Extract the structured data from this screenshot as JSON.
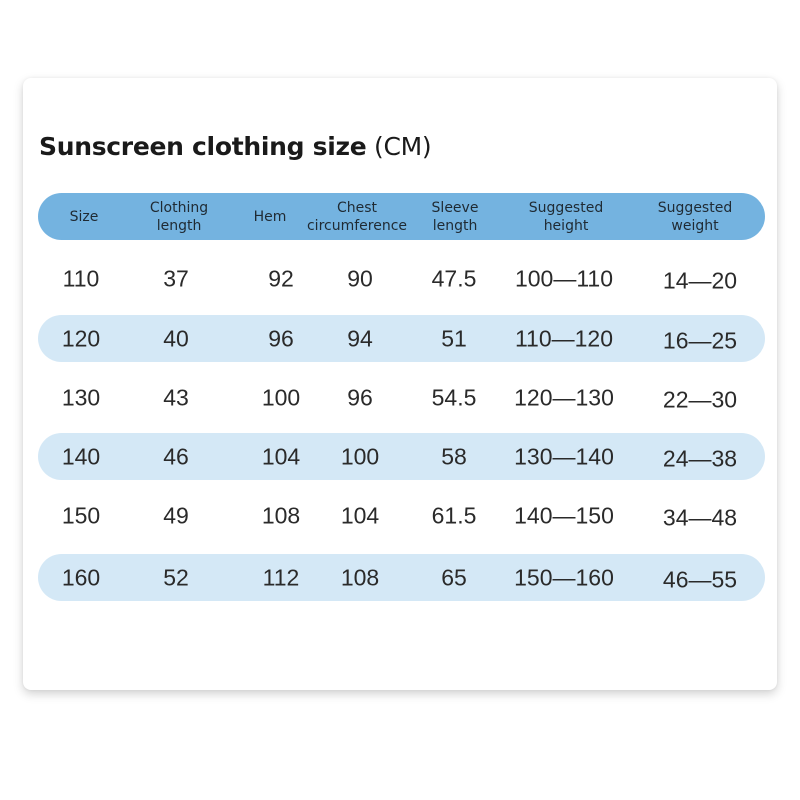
{
  "title": {
    "bold": "Sunscreen clothing size",
    "unit": "(CM)"
  },
  "colors": {
    "header": "#74b3e0",
    "band": "#d4e8f6"
  },
  "columns": [
    "Size",
    "Clothing length",
    "Hem",
    "Chest circumference",
    "Sleeve length",
    "Suggested height",
    "Suggested weight"
  ],
  "rows": [
    [
      "110",
      "37",
      "92",
      "90",
      "47.5",
      "100—110",
      "14—20"
    ],
    [
      "120",
      "40",
      "96",
      "94",
      "51",
      "110—120",
      "16—25"
    ],
    [
      "130",
      "43",
      "100",
      "96",
      "54.5",
      "120—130",
      "22—30"
    ],
    [
      "140",
      "46",
      "104",
      "100",
      "58",
      "130—140",
      "24—38"
    ],
    [
      "150",
      "49",
      "108",
      "104",
      "61.5",
      "140—150",
      "34—48"
    ],
    [
      "160",
      "52",
      "112",
      "108",
      "65",
      "150—160",
      "46—55"
    ]
  ]
}
